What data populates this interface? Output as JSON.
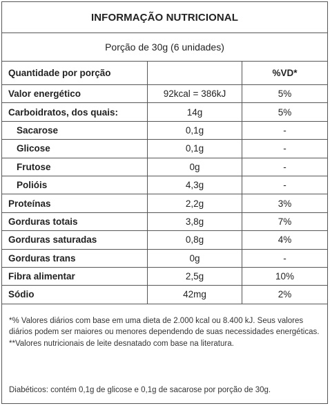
{
  "title": "INFORMAÇÃO NUTRICIONAL",
  "portion": "Porção de 30g (6 unidades)",
  "header": {
    "qty": "Quantidade por porção",
    "value": "",
    "vd": "%VD*"
  },
  "rows": [
    {
      "name": "Valor energético",
      "amount": "92kcal = 386kJ",
      "vd": "5%"
    },
    {
      "name": "Carboidratos, dos quais:",
      "amount": "14g",
      "vd": "5%"
    },
    {
      "name": "Sacarose",
      "amount": "0,1g",
      "vd": "-"
    },
    {
      "name": "Glicose",
      "amount": "0,1g",
      "vd": "-"
    },
    {
      "name": "Frutose",
      "amount": "0g",
      "vd": "-"
    },
    {
      "name": "Polióis",
      "amount": "4,3g",
      "vd": "-"
    },
    {
      "name": "Proteínas",
      "amount": "2,2g",
      "vd": "3%"
    },
    {
      "name": "Gorduras totais",
      "amount": "3,8g",
      "vd": "7%"
    },
    {
      "name": "Gorduras saturadas",
      "amount": "0,8g",
      "vd": "4%"
    },
    {
      "name": "Gorduras trans",
      "amount": "0g",
      "vd": "-"
    },
    {
      "name": "Fibra alimentar",
      "amount": "2,5g",
      "vd": "10%"
    },
    {
      "name": "Sódio",
      "amount": "42mg",
      "vd": "2%"
    }
  ],
  "notes": {
    "n1": "*% Valores diários com base em uma dieta de 2.000 kcal ou 8.400 kJ. Seus valores diários podem ser maiores ou menores dependendo de suas necessidades energéticas.",
    "n2": "**Valores nutricionais de leite desnatado com base na literatura.",
    "diabetics": "Diabéticos: contém 0,1g de glicose e 0,1g de sacarose por porção de 30g."
  }
}
